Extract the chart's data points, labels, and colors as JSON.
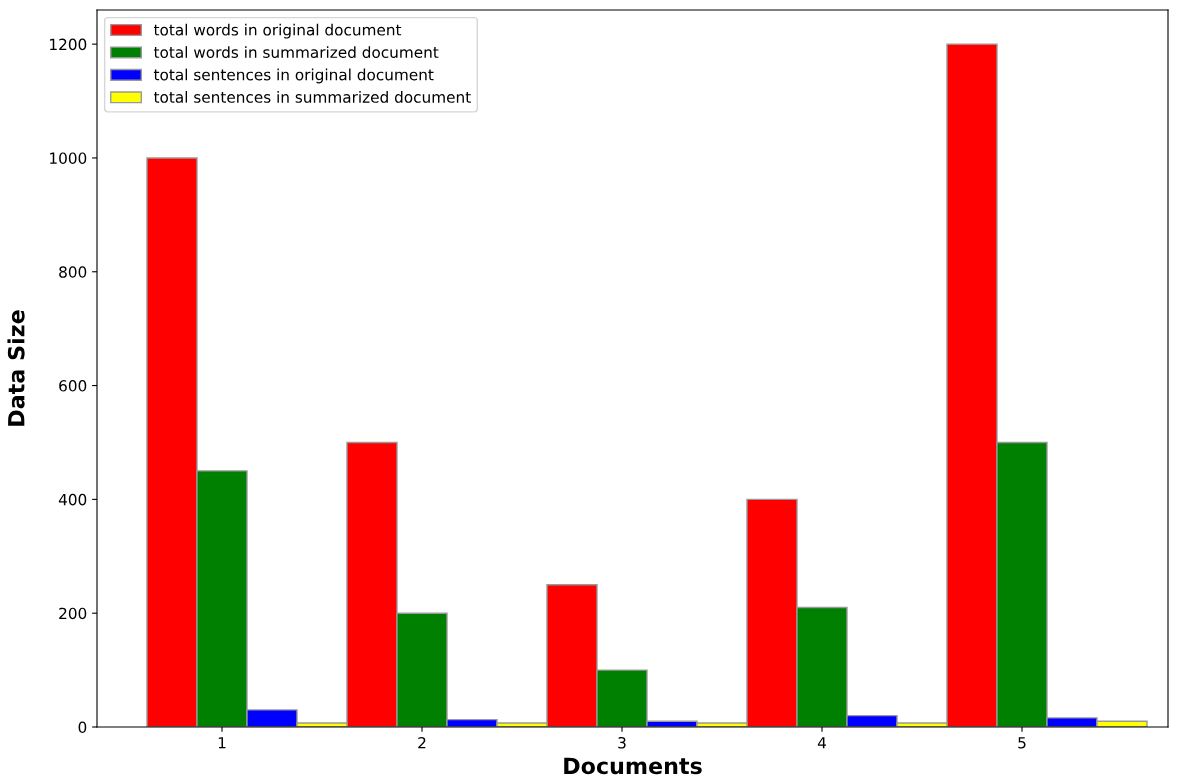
{
  "chart_data": {
    "type": "bar",
    "xlabel": "Documents",
    "ylabel": "Data Size",
    "categories": [
      "1",
      "2",
      "3",
      "4",
      "5"
    ],
    "series": [
      {
        "name": "total words in original document",
        "color": "#ff0000",
        "values": [
          1000,
          500,
          250,
          400,
          1200
        ]
      },
      {
        "name": "total words in summarized document",
        "color": "#008000",
        "values": [
          450,
          200,
          100,
          210,
          500
        ]
      },
      {
        "name": "total sentences in original document",
        "color": "#0000ff",
        "values": [
          30,
          13,
          10,
          20,
          16
        ]
      },
      {
        "name": "total sentences in summarized document",
        "color": "#ffff00",
        "values": [
          7,
          7,
          7,
          7,
          10
        ]
      }
    ],
    "ylim": [
      0,
      1260
    ],
    "yticks": [
      0,
      200,
      400,
      600,
      800,
      1000,
      1200
    ],
    "legend": "top left",
    "grid": false
  }
}
